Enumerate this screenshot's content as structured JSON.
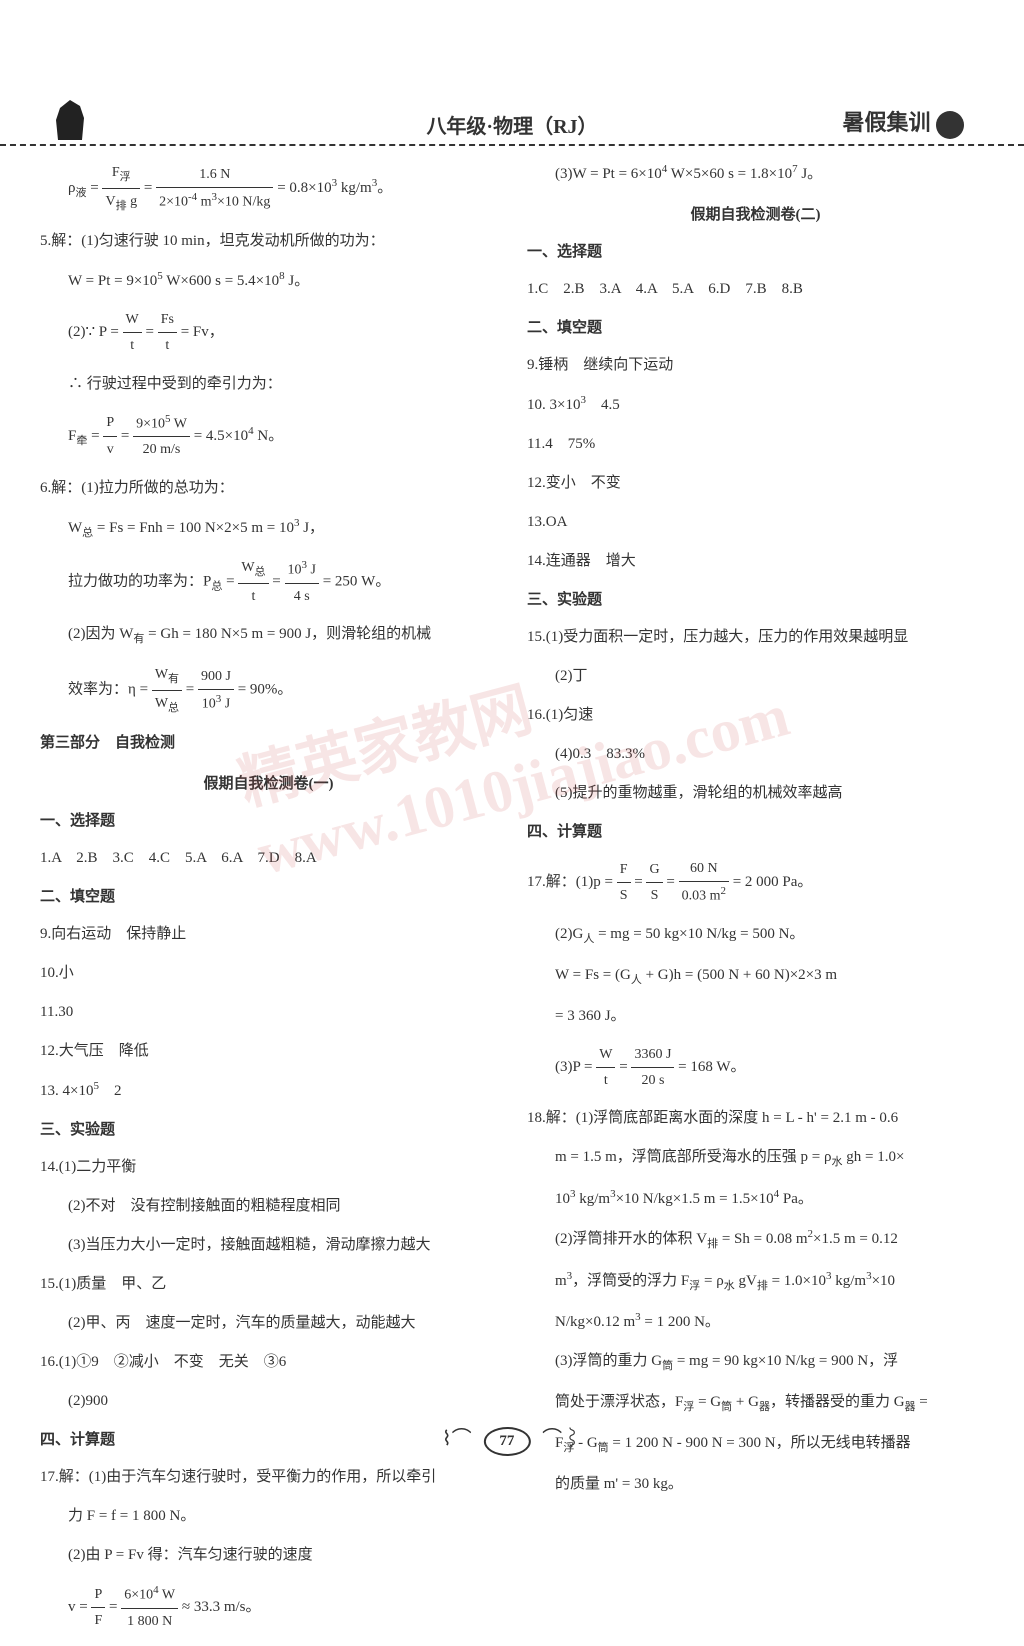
{
  "header": {
    "title": "八年级·物理（RJ）",
    "right_label": "暑假集训"
  },
  "left_column": {
    "l1": "ρ液 = F浮/(V排·g) = 1.6 N / (2×10⁻⁴ m³×10 N/kg) = 0.8×10³ kg/m³。",
    "l2": "5.解：(1)匀速行驶 10 min，坦克发动机所做的功为：",
    "l3": "W = Pt = 9×10⁵ W×600 s = 5.4×10⁸ J。",
    "l4": "(2)∵ P = W/t = Fs/t = Fv，",
    "l5": "∴ 行驶过程中受到的牵引力为：",
    "l6": "F牵 = P/v = (9×10⁵ W)/(20 m/s) = 4.5×10⁴ N。",
    "l7": "6.解：(1)拉力所做的总功为：",
    "l8": "W总 = Fs = Fnh = 100 N×2×5 m = 10³ J，",
    "l9": "拉力做功的功率为：P总 = W总/t = 10³ J / 4 s = 250 W。",
    "l10": "(2)因为 W有 = Gh = 180 N×5 m = 900 J，则滑轮组的机械",
    "l11": "效率为：η = W有/W总 = 900 J / 10³ J = 90%。",
    "section3": "第三部分　自我检测",
    "test1_title": "假期自我检测卷(一)",
    "choice_title": "一、选择题",
    "choice_answers": "1.A　2.B　3.C　4.C　5.A　6.A　7.D　8.A",
    "fill_title": "二、填空题",
    "f9": "9.向右运动　保持静止",
    "f10": "10.小",
    "f11": "11.30",
    "f12": "12.大气压　降低",
    "f13": "13.4×10⁵　2",
    "exp_title": "三、实验题",
    "e14_1": "14.(1)二力平衡",
    "e14_2": "(2)不对　没有控制接触面的粗糙程度相同",
    "e14_3": "(3)当压力大小一定时，接触面越粗糙，滑动摩擦力越大",
    "e15_1": "15.(1)质量　甲、乙",
    "e15_2": "(2)甲、丙　速度一定时，汽车的质量越大，动能越大",
    "e16_1": "16.(1)①9　②减小　不变　无关　③6",
    "e16_2": "(2)900",
    "calc_title": "四、计算题",
    "c17_1": "17.解：(1)由于汽车匀速行驶时，受平衡力的作用，所以牵引",
    "c17_2": "力 F = f = 1 800 N。",
    "c17_3": "(2)由 P = Fv 得：汽车匀速行驶的速度",
    "c17_4": "v = P/F = (6×10⁴ W)/(1 800 N) ≈ 33.3 m/s。"
  },
  "right_column": {
    "r1": "(3)W = Pt = 6×10⁴ W×5×60 s = 1.8×10⁷ J。",
    "test2_title": "假期自我检测卷(二)",
    "choice_title": "一、选择题",
    "choice_answers": "1.C　2.B　3.A　4.A　5.A　6.D　7.B　8.B",
    "fill_title": "二、填空题",
    "f9": "9.锤柄　继续向下运动",
    "f10": "10.3×10³　4.5",
    "f11": "11.4　75%",
    "f12": "12.变小　不变",
    "f13": "13.OA",
    "f14": "14.连通器　增大",
    "exp_title": "三、实验题",
    "e15_1": "15.(1)受力面积一定时，压力越大，压力的作用效果越明显",
    "e15_2": "(2)丁",
    "e16_1": "16.(1)匀速",
    "e16_4": "(4)0.3　83.3%",
    "e16_5": "(5)提升的重物越重，滑轮组的机械效率越高",
    "calc_title": "四、计算题",
    "c17_1": "17.解：(1)p = F/S = G/S = 60 N / 0.03 m² = 2 000 Pa。",
    "c17_2": "(2)G人 = mg = 50 kg×10 N/kg = 500 N。",
    "c17_3": "W = Fs = (G人 + G)h = (500 N + 60 N)×2×3 m",
    "c17_4": "= 3 360 J。",
    "c17_5": "(3)P = W/t = 3360 J / 20 s = 168 W。",
    "c18_1": "18.解：(1)浮筒底部距离水面的深度 h = L - h' = 2.1 m - 0.6",
    "c18_2": "m = 1.5 m，浮筒底部所受海水的压强 p = ρ水 gh = 1.0×",
    "c18_3": "10³ kg/m³×10 N/kg×1.5 m = 1.5×10⁴ Pa。",
    "c18_4": "(2)浮筒排开水的体积 V排 = Sh = 0.08 m²×1.5 m = 0.12",
    "c18_5": "m³，浮筒受的浮力 F浮 = ρ水 gV排 = 1.0×10³ kg/m³×10",
    "c18_6": "N/kg×0.12 m³ = 1 200 N。",
    "c18_7": "(3)浮筒的重力 G筒 = mg = 90 kg×10 N/kg = 900 N，浮",
    "c18_8": "筒处于漂浮状态，F浮 = G筒 + G器，转播器受的重力 G器 =",
    "c18_9": "F浮 - G筒 = 1 200 N - 900 N = 300 N，所以无线电转播器",
    "c18_10": "的质量 m' = 30 kg。"
  },
  "page_number": "77",
  "watermark": "精英家教网 www.1010jiajiao.com"
}
